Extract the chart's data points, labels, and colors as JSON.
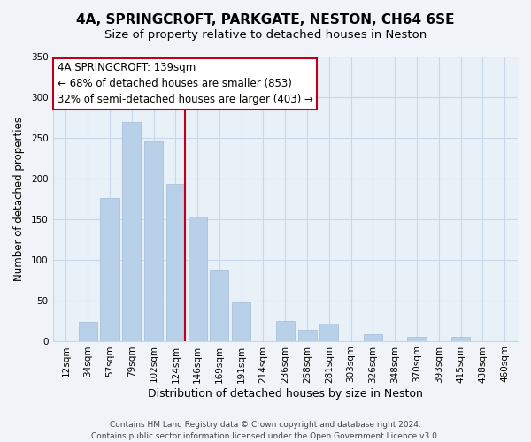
{
  "title": "4A, SPRINGCROFT, PARKGATE, NESTON, CH64 6SE",
  "subtitle": "Size of property relative to detached houses in Neston",
  "xlabel": "Distribution of detached houses by size in Neston",
  "ylabel": "Number of detached properties",
  "categories": [
    "12sqm",
    "34sqm",
    "57sqm",
    "79sqm",
    "102sqm",
    "124sqm",
    "146sqm",
    "169sqm",
    "191sqm",
    "214sqm",
    "236sqm",
    "258sqm",
    "281sqm",
    "303sqm",
    "326sqm",
    "348sqm",
    "370sqm",
    "393sqm",
    "415sqm",
    "438sqm",
    "460sqm"
  ],
  "values": [
    0,
    24,
    176,
    270,
    245,
    193,
    153,
    88,
    47,
    0,
    25,
    14,
    21,
    0,
    8,
    0,
    5,
    0,
    5,
    0,
    0
  ],
  "bar_color_normal": "#b8d0e8",
  "bar_edge_color": "#a0bcd8",
  "highlight_line_color": "#c0001a",
  "highlight_index": 5,
  "ylim": [
    0,
    350
  ],
  "yticks": [
    0,
    50,
    100,
    150,
    200,
    250,
    300,
    350
  ],
  "annotation_title": "4A SPRINGCROFT: 139sqm",
  "annotation_line1": "← 68% of detached houses are smaller (853)",
  "annotation_line2": "32% of semi-detached houses are larger (403) →",
  "footer1": "Contains HM Land Registry data © Crown copyright and database right 2024.",
  "footer2": "Contains public sector information licensed under the Open Government Licence v3.0.",
  "background_color": "#f0f4f8",
  "plot_bg_color": "#e8f0f8",
  "grid_color": "#c8d8e8",
  "title_fontsize": 11,
  "subtitle_fontsize": 9.5,
  "xlabel_fontsize": 9,
  "ylabel_fontsize": 8.5,
  "tick_fontsize": 7.5,
  "annotation_fontsize": 8.5,
  "footer_fontsize": 6.5
}
